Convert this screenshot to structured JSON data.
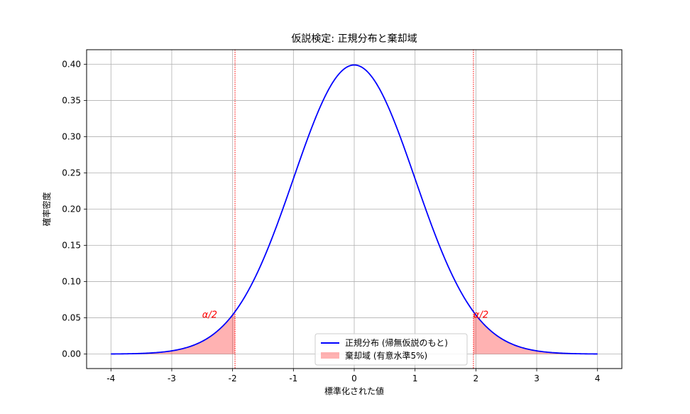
{
  "chart_data": {
    "type": "line",
    "title": "仮説検定: 正規分布と棄却域",
    "xlabel": "標準化された値",
    "ylabel": "確率密度",
    "xlim": [
      -4.4,
      4.4
    ],
    "ylim": [
      -0.02,
      0.42
    ],
    "xticks": [
      -4,
      -3,
      -2,
      -1,
      0,
      1,
      2,
      3,
      4
    ],
    "yticks": [
      0.0,
      0.05,
      0.1,
      0.15,
      0.2,
      0.25,
      0.3,
      0.35,
      0.4
    ],
    "xtick_labels": [
      "-4",
      "-3",
      "-2",
      "-1",
      "0",
      "1",
      "2",
      "3",
      "4"
    ],
    "ytick_labels": [
      "0.00",
      "0.05",
      "0.10",
      "0.15",
      "0.20",
      "0.25",
      "0.30",
      "0.35",
      "0.40"
    ],
    "grid": true,
    "series": [
      {
        "name": "正規分布 (帰無仮説のもと)",
        "color": "#0000ff",
        "x": [
          -4.0,
          -3.5,
          -3.0,
          -2.5,
          -2.0,
          -1.96,
          -1.5,
          -1.0,
          -0.5,
          0.0,
          0.5,
          1.0,
          1.5,
          1.96,
          2.0,
          2.5,
          3.0,
          3.5,
          4.0
        ],
        "y": [
          0.0001,
          0.0009,
          0.0044,
          0.0175,
          0.054,
          0.0584,
          0.1295,
          0.242,
          0.3521,
          0.3989,
          0.3521,
          0.242,
          0.1295,
          0.0584,
          0.054,
          0.0175,
          0.0044,
          0.0009,
          0.0001
        ]
      }
    ],
    "rejection_region": {
      "name": "棄却域 (有意水準5%)",
      "color": "#ff0000",
      "lower_x": [
        -4.0,
        -1.96
      ],
      "upper_x": [
        1.96,
        4.0
      ]
    },
    "critical_values": [
      -1.96,
      1.96
    ],
    "critical_line_color": "#ff0000",
    "annotations": [
      {
        "text": "α/2",
        "x": -2.5,
        "y": 0.05
      },
      {
        "text": "α/2",
        "x": 1.96,
        "y": 0.05
      }
    ],
    "legend_position": "bottom-center"
  }
}
